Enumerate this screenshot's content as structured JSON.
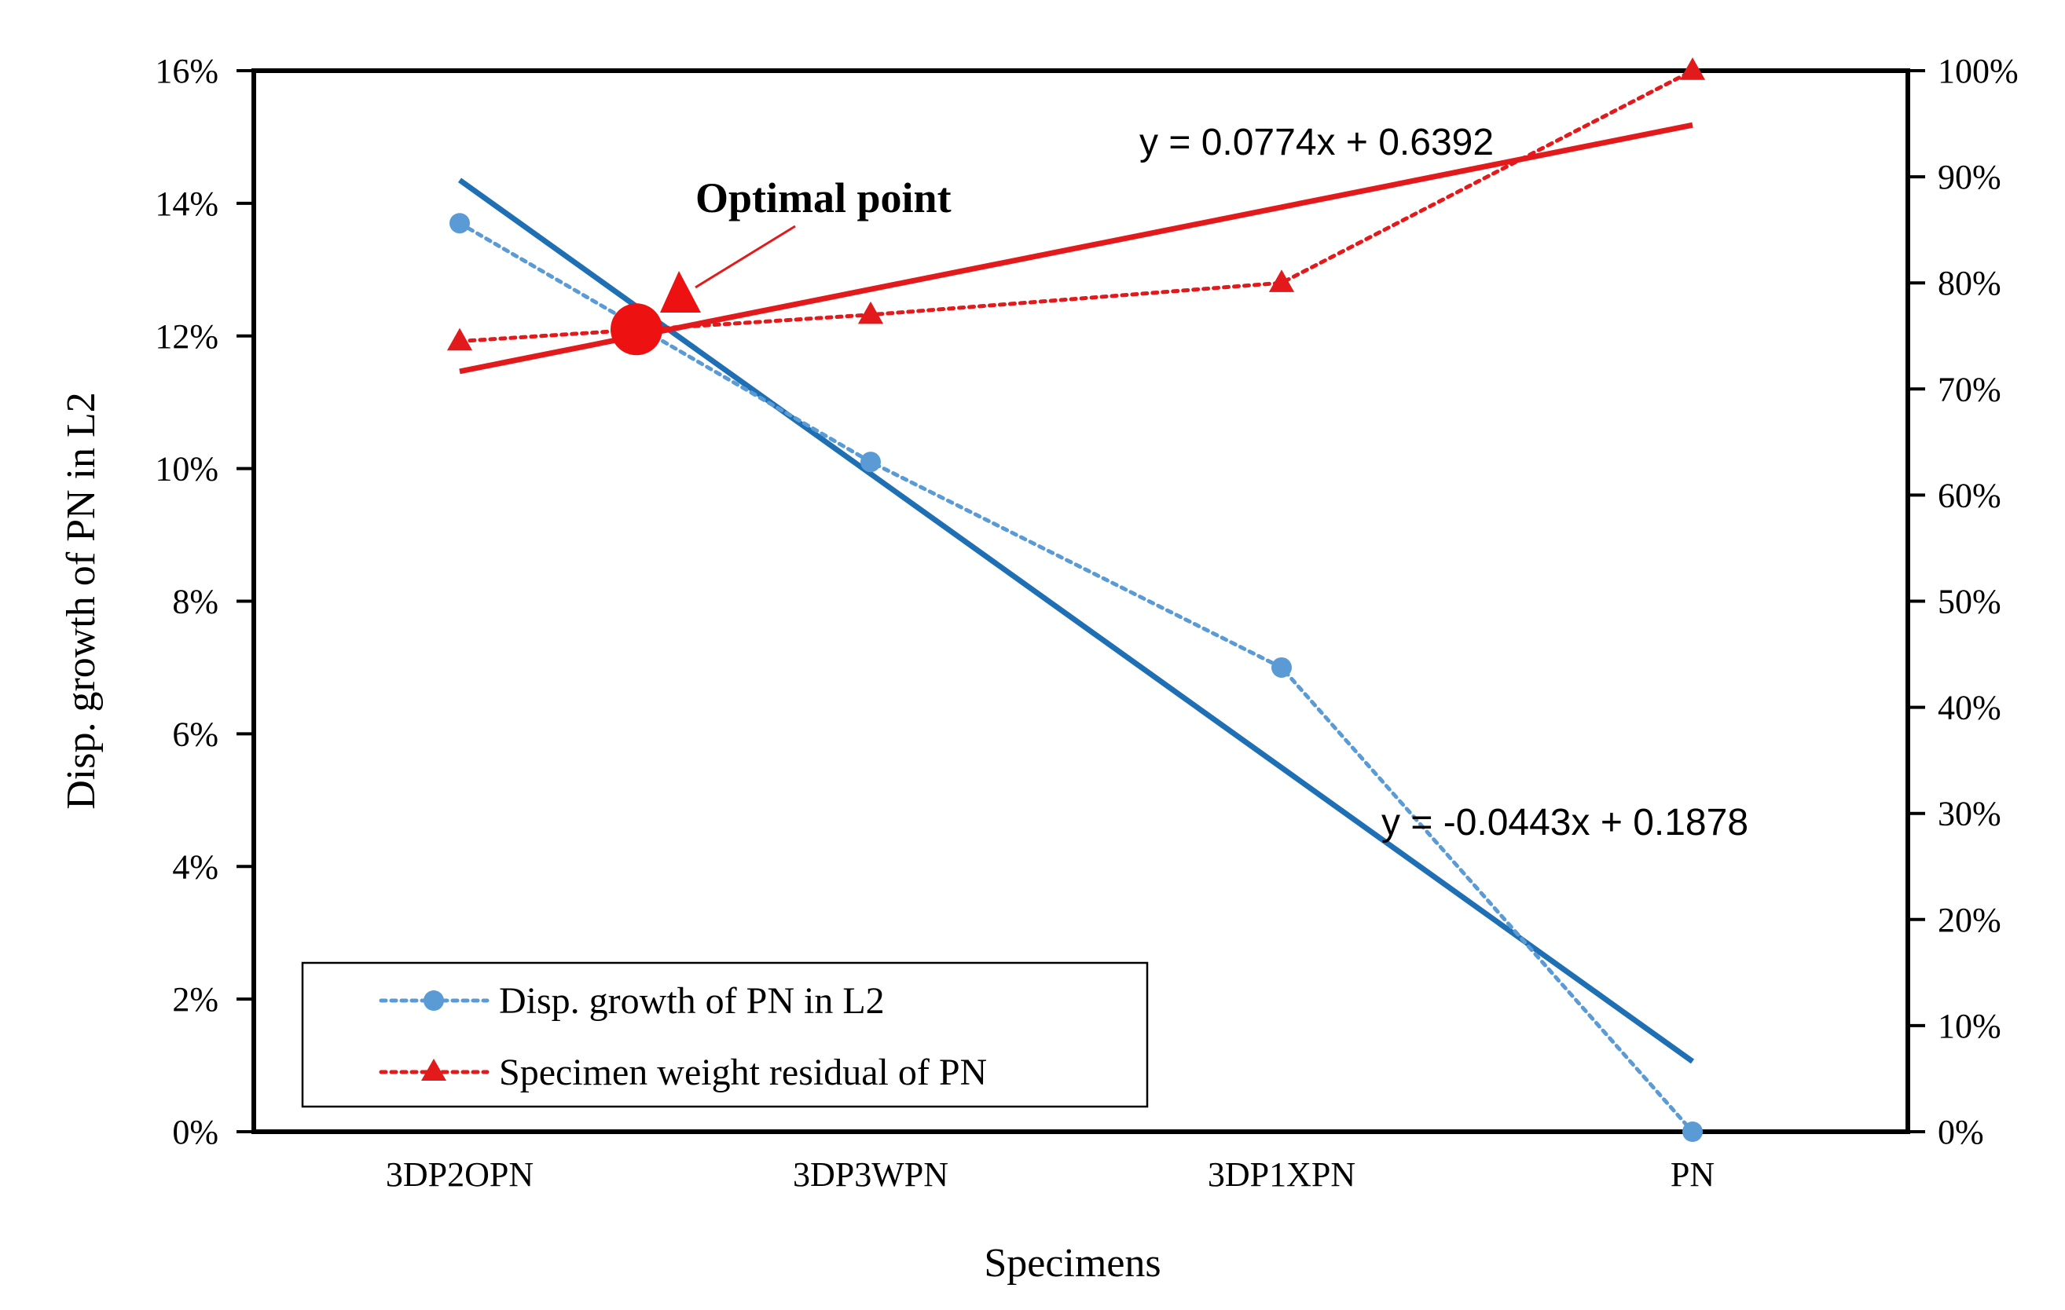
{
  "chart_data": {
    "type": "line",
    "categories": [
      "3DP2OPN",
      "3DP3WPN",
      "3DP1XPN",
      "PN"
    ],
    "xlabel": "Specimens",
    "ylabel": "Disp. growth of PN in L2",
    "ylim": [
      0,
      0.16
    ],
    "y_ticks": [
      "0%",
      "2%",
      "4%",
      "6%",
      "8%",
      "10%",
      "12%",
      "14%",
      "16%"
    ],
    "y2lim": [
      0,
      1.0
    ],
    "y2_ticks": [
      "0%",
      "10%",
      "20%",
      "30%",
      "40%",
      "50%",
      "60%",
      "70%",
      "80%",
      "90%",
      "100%"
    ],
    "series": [
      {
        "name": "Disp. growth of PN in L2",
        "axis": "left",
        "style": "dotted",
        "marker": "circle",
        "color": "#5B9BD5",
        "values": [
          0.137,
          0.101,
          0.07,
          0.0
        ]
      },
      {
        "name": "Specimen weight residual of PN",
        "axis": "right",
        "style": "dotted",
        "marker": "triangle",
        "color": "#E31A1C",
        "values": [
          0.745,
          0.77,
          0.8,
          1.0
        ]
      }
    ],
    "trendlines": [
      {
        "series": 0,
        "axis": "left",
        "slope": -0.0443,
        "intercept": 0.1878,
        "color": "#1F6FB5",
        "label": "y = -0.0443x + 0.1878"
      },
      {
        "series": 1,
        "axis": "right",
        "slope": 0.0774,
        "intercept": 0.6392,
        "color": "#E31A1C",
        "label": "y = 0.0774x + 0.6392"
      }
    ],
    "annotation": {
      "text": "Optimal point",
      "x_index": 1.43,
      "y_left": 0.121
    },
    "legend_position": "bottom-left"
  }
}
